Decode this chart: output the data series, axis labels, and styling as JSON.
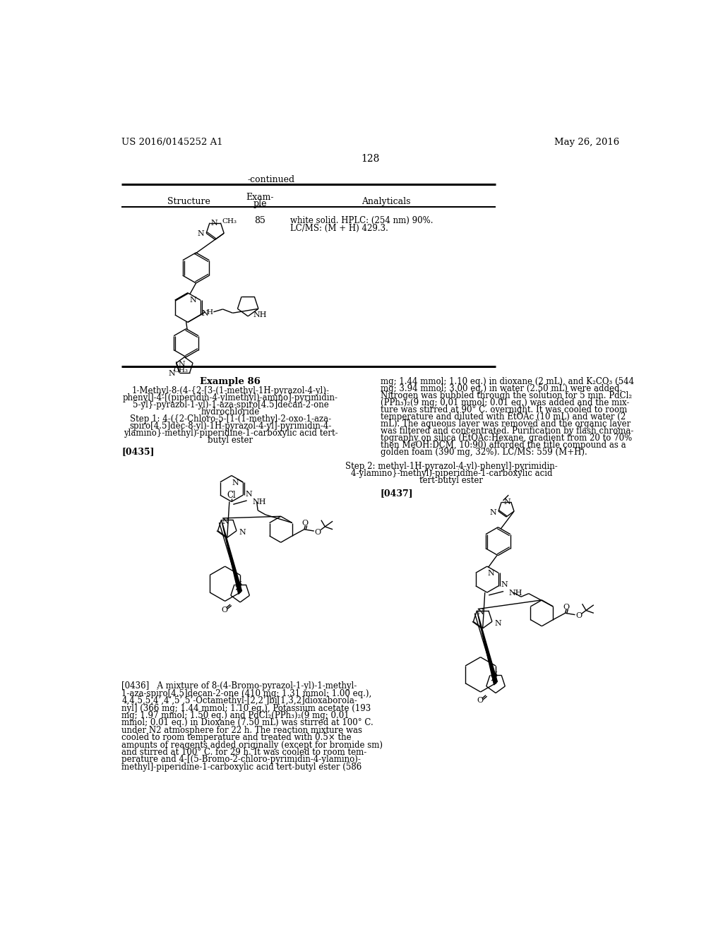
{
  "page_header_left": "US 2016/0145252 A1",
  "page_header_right": "May 26, 2016",
  "page_number": "128",
  "continued_label": "-continued",
  "col1_header": "Structure",
  "col2_header1": "Exam-",
  "col2_header2": "ple",
  "col3_header": "Analyticals",
  "ex85_num": "85",
  "ex85_anal1": "white solid. HPLC: (254 nm) 90%.",
  "ex85_anal2": "LC/MS: (M + H) 429.3.",
  "ex86_title": "Example 86",
  "ex86_name": [
    "1-Methyl-8-(4-{2-[3-(1-methyl-1H-pyrazol-4-yl)-",
    "phenyl]-4-[(piperidin-4-ylmethyl)-amino]-pyrimidin-",
    "5-yl}-pyrazol-1-yl)-1-aza-spiro[4.5]decan-2-one",
    "hydrochloride"
  ],
  "step1_text": [
    "Step 1: 4-({2-Chloro-5-[1-(1-methyl-2-oxo-1-aza-",
    "spiro[4.5]dec-8-yl)-1H-pyrazol-4-yl]-pyrimidin-4-",
    "ylamino}-methyl)-piperidine-1-carboxylic acid tert-",
    "butyl ester"
  ],
  "ref0435": "[0435]",
  "ref0436_lines": [
    "[0436]   A mixture of 8-(4-Bromo-pyrazol-1-yl)-1-methyl-",
    "1-aza-spiro[4.5]decan-2-one (410 mg; 1.31 mmol; 1.00 eq.),",
    "4,4,5,5,4’,4’,5’,5’-Octamethyl-[2,2’]bi[1,3,2]dioxaborola-",
    "nyl] (366 mg; 1.44 mmol; 1.10 eq.), Potassium acetate (193",
    "mg; 1.97 mmol; 1.50 eq.) and PdCl₂(PPh₃)₂(9 mg; 0.01",
    "mmol; 0.01 eq.) in Dioxane (7.50 mL) was stirred at 100° C.",
    "under N2 atmosphere for 22 h. The reaction mixture was",
    "cooled to room temperature and treated with 0.5× the",
    "amounts of reagents added originally (except for bromide sm)",
    "and stirred at 100° C. for 29 h. It was cooled to room tem-",
    "perature and 4-[(5-Bromo-2-chloro-pyrimidin-4-ylamino)-",
    "methyl]-piperidine-1-carboxylic acid tert-butyl ester (586"
  ],
  "right_top_lines": [
    "mg; 1.44 mmol; 1.10 eq.) in dioxane (2 mL), and K₂CO₃ (544",
    "mg; 3.94 mmol; 3.00 eq.) in water (2.50 mL) were added.",
    "Nitrogen was bubbled through the solution for 5 min. PdCl₂",
    "(PPh₃)₂(9 mg; 0.01 mmol; 0.01 eq.) was added and the mix-",
    "ture was stirred at 90° C. overnight. It was cooled to room",
    "temperature and diluted with EtOAc (10 mL) and water (2",
    "mL). The aqueous layer was removed and the organic layer",
    "was filtered and concentrated. Purification by flash chroma-",
    "tography on silica (EtOAc:Hexane, gradient from 20 to 70%",
    "then MeOH:DCM, 10:90) afforded the title compound as a",
    "golden foam (390 mg, 32%). LC/MS: 559 (M+H)."
  ],
  "step2_lines": [
    "Step 2: methyl-1H-pyrazol-4-yl)-phenyl]-pyrimidin-",
    "4-ylamino}-methyl)-piperidine-1-carboxylic acid",
    "tert-butyl ester"
  ],
  "ref0437": "[0437]"
}
